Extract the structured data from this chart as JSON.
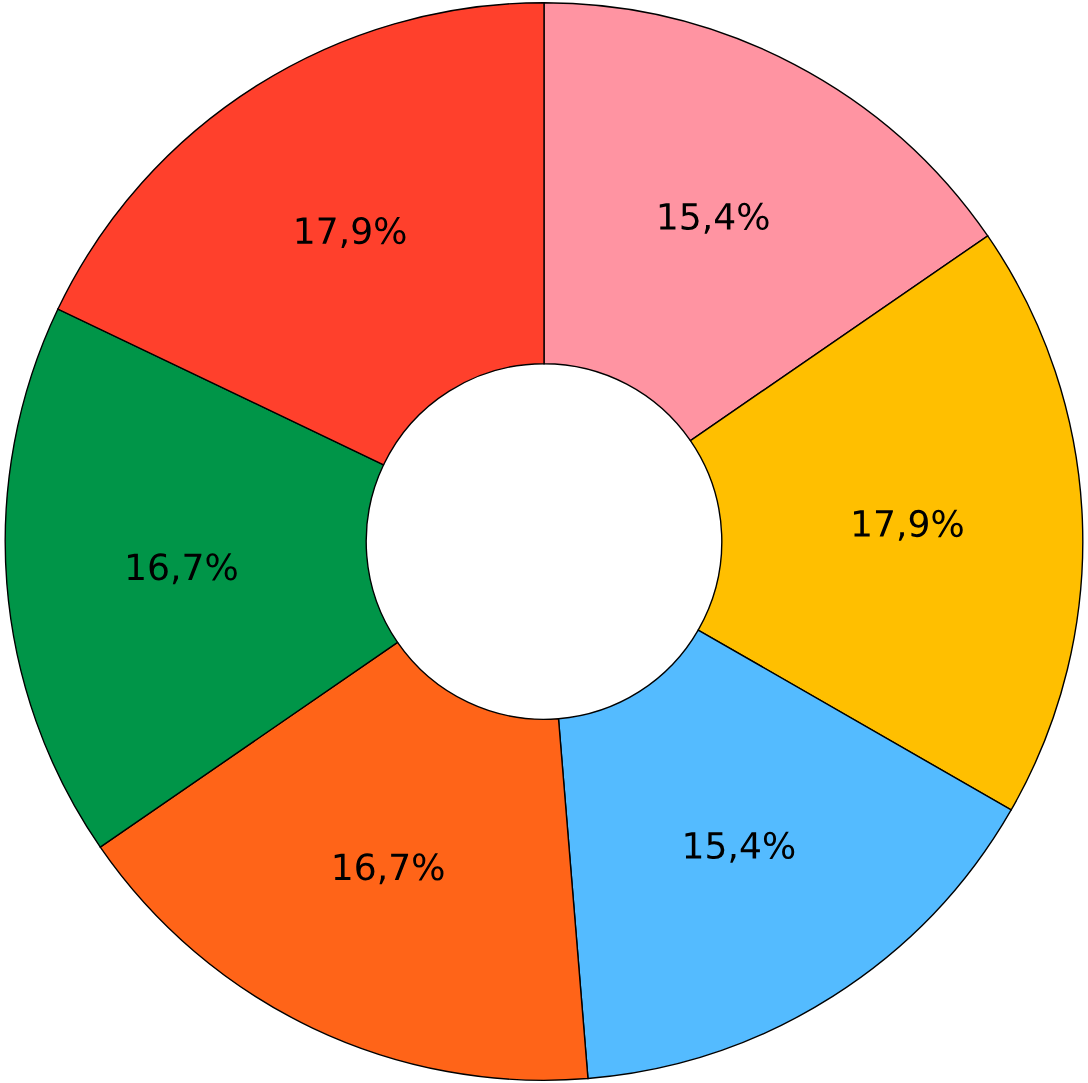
{
  "chart_data": {
    "type": "donut",
    "categories": [
      null,
      null,
      null,
      null,
      null,
      null
    ],
    "values": [
      15.4,
      17.9,
      15.4,
      16.7,
      16.7,
      17.9
    ],
    "colors": [
      "#ff94a2",
      "#ffbf00",
      "#54bbff",
      "#ff6418",
      "#009548",
      "#ff402c"
    ],
    "value_labels": [
      "15,4%",
      "17,9%",
      "15,4%",
      "16,7%",
      "16,7%",
      "17,9%"
    ],
    "legend": false
  }
}
